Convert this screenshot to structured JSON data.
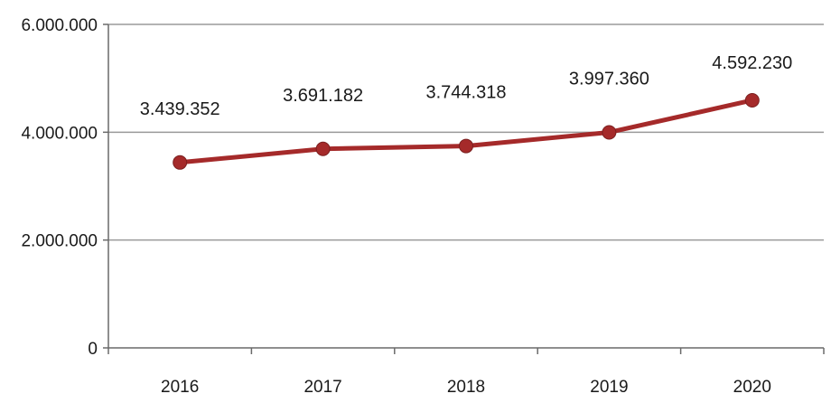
{
  "chart_data": {
    "type": "line",
    "categories": [
      "2016",
      "2017",
      "2018",
      "2019",
      "2020"
    ],
    "series": [
      {
        "values": [
          3439352,
          3691182,
          3744318,
          3997360,
          4592230
        ],
        "labels": [
          "3.439.352",
          "3.691.182",
          "3.744.318",
          "3.997.360",
          "4.592.230"
        ],
        "color": "#a52a2a"
      }
    ],
    "ylim": [
      0,
      6000000
    ],
    "yticks": [
      {
        "value": 0,
        "label": "0"
      },
      {
        "value": 2000000,
        "label": "2.000.000"
      },
      {
        "value": 4000000,
        "label": "4.000.000"
      },
      {
        "value": 6000000,
        "label": "6.000.000"
      }
    ],
    "title": "",
    "xlabel": "",
    "ylabel": "",
    "grid": true,
    "legend": "none",
    "colors": {
      "line": "#a52a2a",
      "marker": "#a52a2a",
      "grid": "#9a9a9a",
      "axis": "#6a6a6a",
      "text": "#1a1a1a"
    }
  }
}
